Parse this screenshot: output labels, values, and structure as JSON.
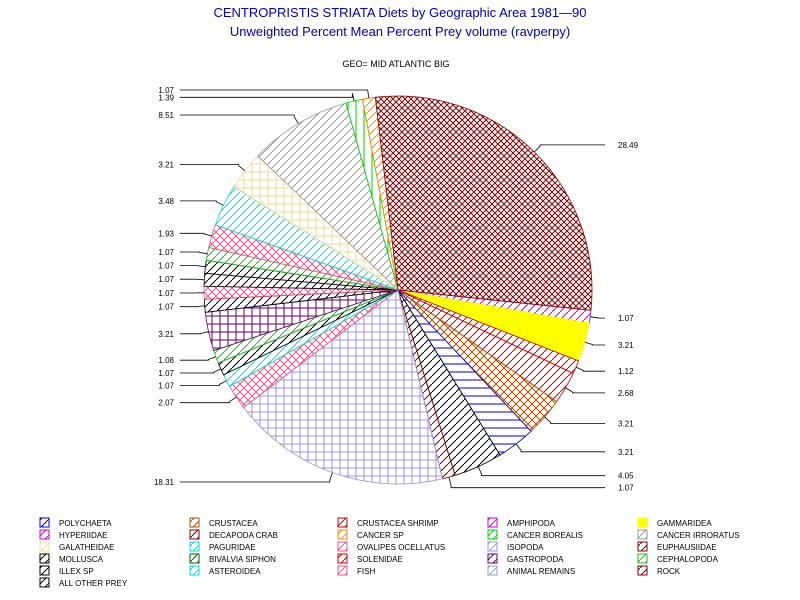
{
  "chart_data": {
    "type": "pie",
    "title": "CENTROPRISTIS STRIATA Diets by Geographic Area 1981—90",
    "subtitle": "Unweighted Percent Mean Percent Prey  volume (ravperpy)",
    "geo_label": "GEO= MID ATLANTIC BIG",
    "slices": [
      {
        "label": "1.07",
        "value": 1.07,
        "color": "#cc00cc"
      },
      {
        "label": "3.21",
        "value": 3.21,
        "color": "#ffff00"
      },
      {
        "label": "1.12",
        "value": 1.12,
        "color": "#cc0000"
      },
      {
        "label": "2.68",
        "value": 2.68,
        "color": "#cc0000"
      },
      {
        "label": "3.21",
        "value": 3.21,
        "color": "#b05000"
      },
      {
        "label": "3.21",
        "value": 3.21,
        "color": "#0000cc"
      },
      {
        "label": "4.05",
        "value": 4.05,
        "color": "#000000"
      },
      {
        "label": "1.07",
        "value": 1.07,
        "color": "#800000"
      },
      {
        "label": "18.31",
        "value": 18.31,
        "color": "#9999dd"
      },
      {
        "label": "2.07",
        "value": 2.07,
        "color": "#ee5588"
      },
      {
        "label": "1.07",
        "value": 1.07,
        "color": "#00dddd"
      },
      {
        "label": "1.07",
        "value": 1.07,
        "color": "#000000"
      },
      {
        "label": "1.08",
        "value": 1.08,
        "color": "#22bb22"
      },
      {
        "label": "3.21",
        "value": 3.21,
        "color": "#660066"
      },
      {
        "label": "1.07",
        "value": 1.07,
        "color": "#000000"
      },
      {
        "label": "1.07",
        "value": 1.07,
        "color": "#ee5588"
      },
      {
        "label": "1.07",
        "value": 1.07,
        "color": "#000000"
      },
      {
        "label": "1.07",
        "value": 1.07,
        "color": "#000000"
      },
      {
        "label": "1.07",
        "value": 1.07,
        "color": "#22bb22"
      },
      {
        "label": "1.93",
        "value": 1.93,
        "color": "#ee5588"
      },
      {
        "label": "3.48",
        "value": 3.48,
        "color": "#00dddd"
      },
      {
        "label": "3.21",
        "value": 3.21,
        "color": "#eedd99"
      },
      {
        "label": "8.51",
        "value": 8.51,
        "color": "#999999"
      },
      {
        "label": "1.39",
        "value": 1.39,
        "color": "#00cc00"
      },
      {
        "label": "1.07",
        "value": 1.07,
        "color": "#ff8800"
      },
      {
        "label": "28.49",
        "value": 28.49,
        "color": "#800000"
      }
    ],
    "legend": [
      {
        "label": "POLYCHAETA",
        "color": "#0000cc"
      },
      {
        "label": "CRUSTACEA",
        "color": "#b05000"
      },
      {
        "label": "CRUSTACEA SHRIMP",
        "color": "#cc0000"
      },
      {
        "label": "AMPHIPODA",
        "color": "#cc00cc"
      },
      {
        "label": "GAMMARIDEA",
        "color": "#ffff00"
      },
      {
        "label": "HYPERIIDAE",
        "color": "#cc00cc"
      },
      {
        "label": "DECAPODA CRAB",
        "color": "#800000"
      },
      {
        "label": "CANCER SP",
        "color": "#ff8800"
      },
      {
        "label": "CANCER BOREALIS",
        "color": "#00cc00"
      },
      {
        "label": "CANCER IRRORATUS",
        "color": "#999999"
      },
      {
        "label": "GALATHEIDAE",
        "color": "#eedd99"
      },
      {
        "label": "PAGURIDAE",
        "color": "#00dddd"
      },
      {
        "label": "OVALIPES OCELLATUS",
        "color": "#ee5588"
      },
      {
        "label": "ISOPODA",
        "color": "#9999dd"
      },
      {
        "label": "EUPHAUSIIDAE",
        "color": "#800000"
      },
      {
        "label": "MOLLUSCA",
        "color": "#000000"
      },
      {
        "label": "BIVALVIA SIPHON",
        "color": "#006600"
      },
      {
        "label": "SOLENIDAE",
        "color": "#cc0000"
      },
      {
        "label": "GASTROPODA",
        "color": "#660066"
      },
      {
        "label": "CEPHALOPODA",
        "color": "#22bb22"
      },
      {
        "label": "ILLEX SP",
        "color": "#000000"
      },
      {
        "label": "ASTEROIDEA",
        "color": "#00dddd"
      },
      {
        "label": "FISH",
        "color": "#ee5588"
      },
      {
        "label": "ANIMAL REMAINS",
        "color": "#9999dd"
      },
      {
        "label": "ROCK",
        "color": "#800000"
      },
      {
        "label": "ALL OTHER PREY",
        "color": "#000000"
      }
    ]
  }
}
